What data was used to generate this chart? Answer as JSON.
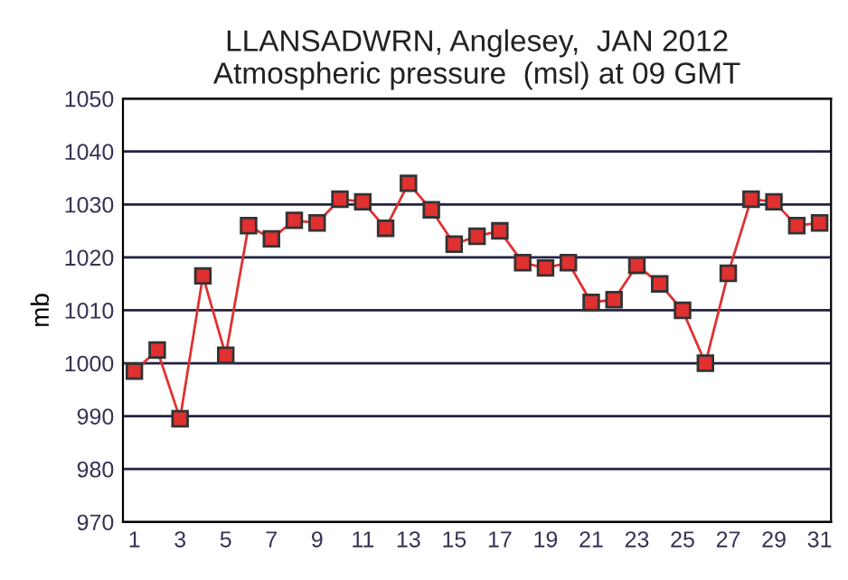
{
  "chart_data": {
    "type": "line",
    "title": "LLANSADWRN, Anglesey,  JAN 2012\nAtmospheric pressure  (msl) at 09 GMT",
    "ylabel": "mb",
    "x": [
      1,
      2,
      3,
      4,
      5,
      6,
      7,
      8,
      9,
      10,
      11,
      12,
      13,
      14,
      15,
      16,
      17,
      18,
      19,
      20,
      21,
      22,
      23,
      24,
      25,
      26,
      27,
      28,
      29,
      30,
      31
    ],
    "series": [
      {
        "color": "#e03030",
        "values": [
          998.5,
          1002.5,
          989.5,
          1016.5,
          1001.5,
          1026,
          1023.5,
          1027,
          1026.5,
          1031,
          1030.5,
          1025.5,
          1034,
          1029,
          1022.5,
          1024,
          1025,
          1019,
          1018,
          1019,
          1011.5,
          1012,
          1018.5,
          1015,
          1010,
          1000,
          1017,
          1031,
          1030.5,
          1026,
          1026.5
        ]
      }
    ],
    "xlim": [
      0.5,
      31.5
    ],
    "xticks": [
      1,
      3,
      5,
      7,
      9,
      11,
      13,
      15,
      17,
      19,
      21,
      23,
      25,
      27,
      29,
      31
    ],
    "ylim": [
      970,
      1050
    ],
    "yticks": [
      970,
      980,
      990,
      1000,
      1010,
      1020,
      1030,
      1040,
      1050
    ],
    "grid": "y",
    "legend": false,
    "marker": "square",
    "line_style": "solid"
  }
}
